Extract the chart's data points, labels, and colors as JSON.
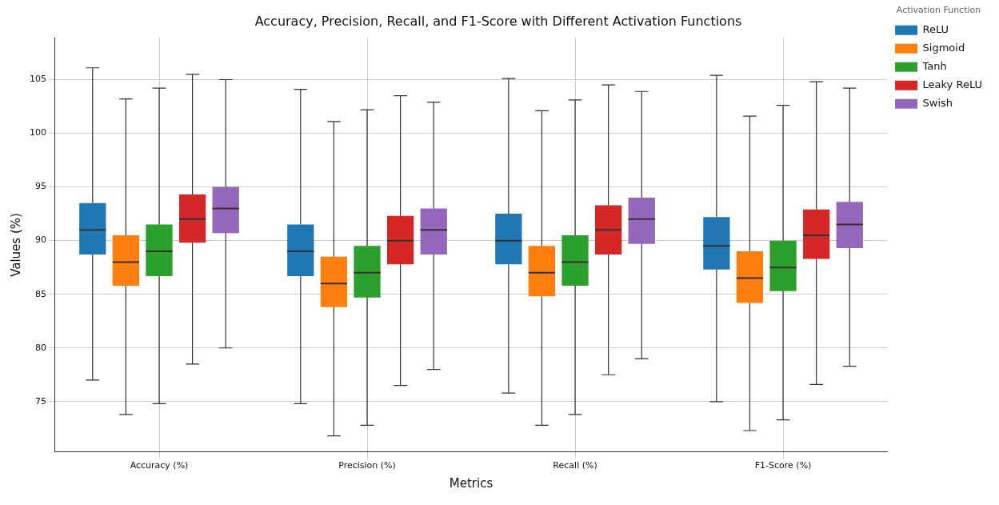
{
  "chart_data": {
    "type": "box",
    "title": "Accuracy, Precision, Recall, and F1-Score with Different Activation Functions",
    "xlabel": "Metrics",
    "ylabel": "Values (%)",
    "legend_title": "Activation Function",
    "legend": "top right",
    "grid": true,
    "categories": [
      "Accuracy (%)",
      "Precision (%)",
      "Recall (%)",
      "F1-Score (%)"
    ],
    "ylim": [
      70.3,
      108.9
    ],
    "yticks": [
      75,
      80,
      85,
      90,
      95,
      100,
      105
    ],
    "series": [
      {
        "name": "ReLU",
        "color": "#1f77b4",
        "boxes": [
          {
            "low": 77,
            "q1": 88.7,
            "median": 91,
            "q3": 93.5,
            "high": 106.1
          },
          {
            "low": 74.8,
            "q1": 86.7,
            "median": 89,
            "q3": 91.5,
            "high": 104.1
          },
          {
            "low": 75.8,
            "q1": 87.8,
            "median": 90,
            "q3": 92.5,
            "high": 105.1
          },
          {
            "low": 75,
            "q1": 87.3,
            "median": 89.5,
            "q3": 92.2,
            "high": 105.4
          }
        ]
      },
      {
        "name": "Sigmoid",
        "color": "#ff7f0e",
        "boxes": [
          {
            "low": 73.8,
            "q1": 85.8,
            "median": 88,
            "q3": 90.5,
            "high": 103.2
          },
          {
            "low": 71.8,
            "q1": 83.8,
            "median": 86,
            "q3": 88.5,
            "high": 101.1
          },
          {
            "low": 72.8,
            "q1": 84.8,
            "median": 87,
            "q3": 89.5,
            "high": 102.1
          },
          {
            "low": 72.3,
            "q1": 84.2,
            "median": 86.5,
            "q3": 89,
            "high": 101.6
          }
        ]
      },
      {
        "name": "Tanh",
        "color": "#2ca02c",
        "boxes": [
          {
            "low": 74.8,
            "q1": 86.7,
            "median": 89,
            "q3": 91.5,
            "high": 104.2
          },
          {
            "low": 72.8,
            "q1": 84.7,
            "median": 87,
            "q3": 89.5,
            "high": 102.2
          },
          {
            "low": 73.8,
            "q1": 85.8,
            "median": 88,
            "q3": 90.5,
            "high": 103.1
          },
          {
            "low": 73.3,
            "q1": 85.3,
            "median": 87.5,
            "q3": 90,
            "high": 102.6
          }
        ]
      },
      {
        "name": "Leaky ReLU",
        "color": "#d62728",
        "boxes": [
          {
            "low": 78.5,
            "q1": 89.8,
            "median": 92,
            "q3": 94.3,
            "high": 105.5
          },
          {
            "low": 76.5,
            "q1": 87.8,
            "median": 90,
            "q3": 92.3,
            "high": 103.5
          },
          {
            "low": 77.5,
            "q1": 88.7,
            "median": 91,
            "q3": 93.3,
            "high": 104.5
          },
          {
            "low": 76.6,
            "q1": 88.3,
            "median": 90.5,
            "q3": 92.9,
            "high": 104.8
          }
        ]
      },
      {
        "name": "Swish",
        "color": "#9467bd",
        "boxes": [
          {
            "low": 80,
            "q1": 90.7,
            "median": 93,
            "q3": 95,
            "high": 105
          },
          {
            "low": 78,
            "q1": 88.7,
            "median": 91,
            "q3": 93,
            "high": 102.9
          },
          {
            "low": 79,
            "q1": 89.7,
            "median": 92,
            "q3": 94,
            "high": 103.9
          },
          {
            "low": 78.3,
            "q1": 89.3,
            "median": 91.5,
            "q3": 93.6,
            "high": 104.2
          }
        ]
      }
    ]
  }
}
